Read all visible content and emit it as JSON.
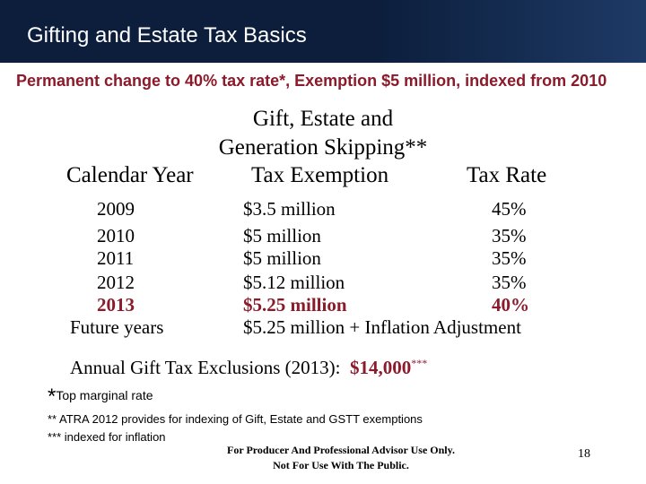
{
  "header": {
    "title": "Gifting and Estate Tax Basics"
  },
  "lead": "Permanent change to 40% tax rate*, Exemption $5 million, indexed from 2010",
  "group_heading": {
    "line1": "Gift, Estate and",
    "line2": "Generation Skipping**"
  },
  "columns": {
    "year": "Calendar Year",
    "exemption": "Tax Exemption",
    "rate": "Tax Rate"
  },
  "rows": [
    {
      "year": "2009",
      "exemption": "$3.5 million",
      "rate": "45%"
    },
    {
      "year": "2010",
      "exemption": "$5 million",
      "rate": "35%"
    },
    {
      "year": "2011",
      "exemption": "$5 million",
      "rate": "35%"
    },
    {
      "year": "2012",
      "exemption": "$5.12 million",
      "rate": "35%"
    },
    {
      "year": "2013",
      "exemption": "$5.25 million",
      "rate": "40%"
    },
    {
      "year": "Future years",
      "exemption": "$5.25 million + Inflation Adjustment",
      "rate": ""
    }
  ],
  "exclusion": {
    "label": "Annual Gift Tax Exclusions (2013):",
    "value": "$14,000",
    "marker": "***"
  },
  "footnotes": {
    "star": "*",
    "one": "Top marginal rate",
    "two": "** ATRA 2012 provides for indexing of Gift, Estate and GSTT exemptions",
    "three": "*** indexed for inflation"
  },
  "disclaimer": {
    "line1": "For Producer And Professional Advisor Use Only.",
    "line2": "Not For Use With The Public."
  },
  "page_number": "18",
  "colors": {
    "header_bg": "#0c1e3c",
    "accent": "#8b1a2a"
  }
}
